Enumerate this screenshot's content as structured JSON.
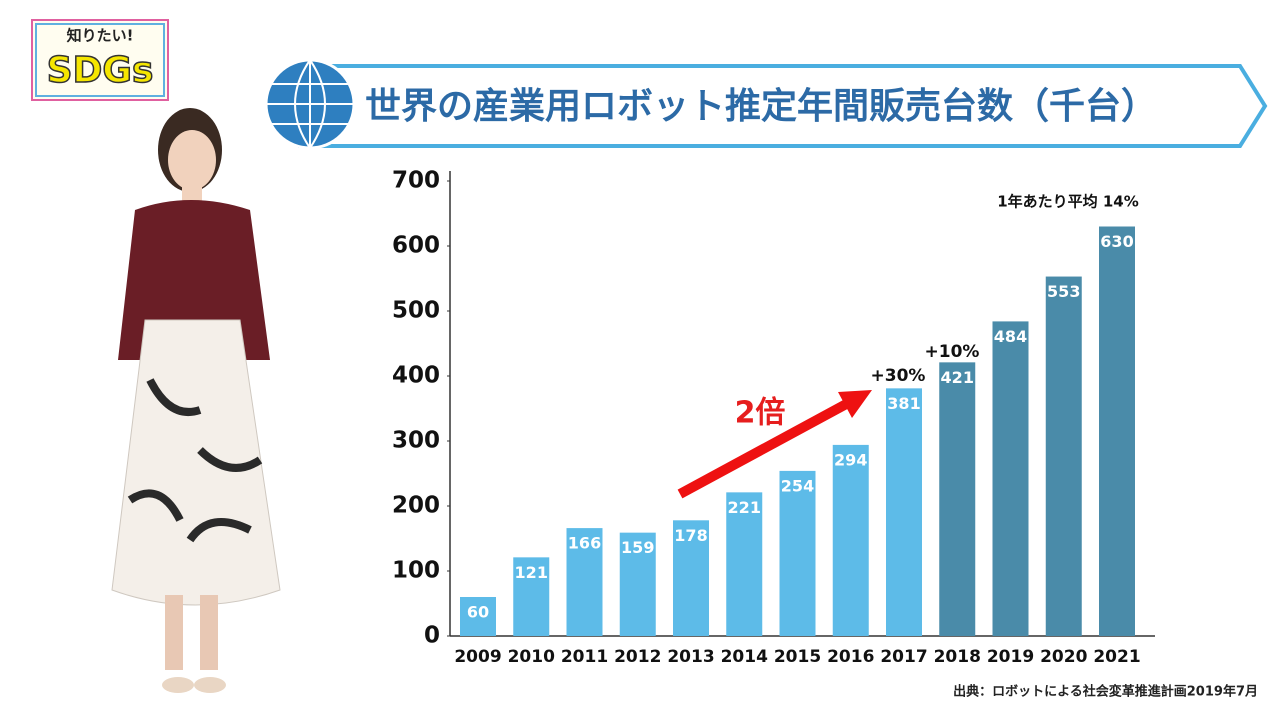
{
  "logo": {
    "top": "知りたい!",
    "main": "SDGs"
  },
  "chart_data": {
    "type": "bar",
    "title": "世界の産業用ロボット推定年間販売台数（千台）",
    "categories": [
      "2009",
      "2010",
      "2011",
      "2012",
      "2013",
      "2014",
      "2015",
      "2016",
      "2017",
      "2018",
      "2019",
      "2020",
      "2021"
    ],
    "values": [
      60,
      121,
      166,
      159,
      178,
      221,
      254,
      294,
      381,
      421,
      484,
      553,
      630
    ],
    "colors": [
      "#5dbbe8",
      "#5dbbe8",
      "#5dbbe8",
      "#5dbbe8",
      "#5dbbe8",
      "#5dbbe8",
      "#5dbbe8",
      "#5dbbe8",
      "#5dbbe8",
      "#4a8ba9",
      "#4a8ba9",
      "#4a8ba9",
      "#4a8ba9"
    ],
    "ylim": [
      0,
      700
    ],
    "yticks": [
      0,
      100,
      200,
      300,
      400,
      500,
      600,
      700
    ],
    "annotations": [
      "2倍",
      "+30%",
      "+10%",
      "1年あたり平均 14%"
    ],
    "source": "出典：ロボットによる社会変革推進計画2019年7月"
  }
}
